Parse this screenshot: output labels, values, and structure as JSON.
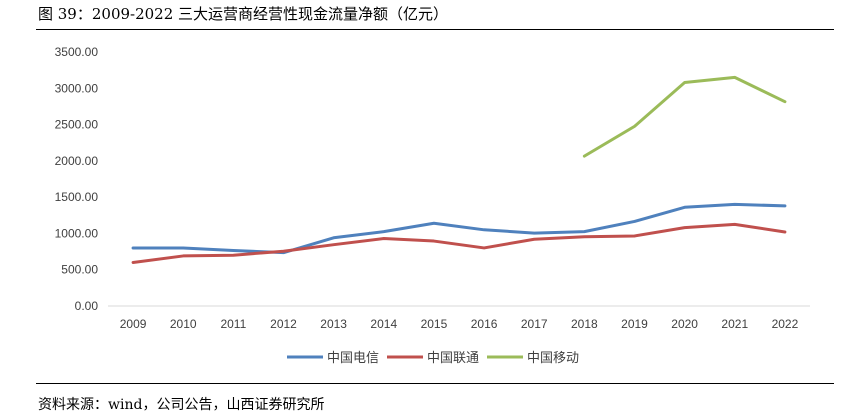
{
  "figure": {
    "title": "图 39：2009-2022 三大运营商经营性现金流量净额（亿元）",
    "source": "资料来源：wind，公司公告，山西证券研究所"
  },
  "chart_data": {
    "type": "line",
    "title": "2009-2022 三大运营商经营性现金流量净额（亿元）",
    "xlabel": "",
    "ylabel": "",
    "ylim": [
      0,
      3500
    ],
    "yticks": [
      "0.00",
      "500.00",
      "1000.00",
      "1500.00",
      "2000.00",
      "2500.00",
      "3000.00",
      "3500.00"
    ],
    "ytick_values": [
      0,
      500,
      1000,
      1500,
      2000,
      2500,
      3000,
      3500
    ],
    "categories": [
      "2009",
      "2010",
      "2011",
      "2012",
      "2013",
      "2014",
      "2015",
      "2016",
      "2017",
      "2018",
      "2019",
      "2020",
      "2021",
      "2022"
    ],
    "legend_position": "bottom",
    "grid": false,
    "series": [
      {
        "name": "中国电信",
        "color": "#4f81bd",
        "values": [
          800,
          800,
          765,
          735,
          940,
          1025,
          1140,
          1050,
          1005,
          1025,
          1165,
          1360,
          1400,
          1380
        ]
      },
      {
        "name": "中国联通",
        "color": "#c0504d",
        "values": [
          600,
          690,
          700,
          755,
          845,
          930,
          895,
          800,
          920,
          955,
          965,
          1080,
          1125,
          1020
        ]
      },
      {
        "name": "中国移动",
        "color": "#9bbb59",
        "values": [
          null,
          null,
          null,
          null,
          null,
          null,
          null,
          null,
          null,
          2065,
          2475,
          3080,
          3150,
          2815
        ]
      }
    ]
  }
}
